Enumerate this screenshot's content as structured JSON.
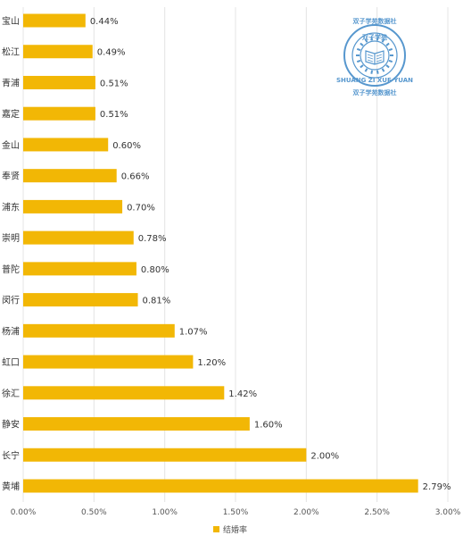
{
  "chart_data": {
    "type": "bar",
    "orientation": "horizontal",
    "categories": [
      "黄埔",
      "长宁",
      "静安",
      "徐汇",
      "虹口",
      "杨浦",
      "闵行",
      "普陀",
      "崇明",
      "浦东",
      "奉贤",
      "金山",
      "嘉定",
      "青浦",
      "松江",
      "宝山"
    ],
    "series": [
      {
        "name": "结婚率",
        "values": [
          2.79,
          2.0,
          1.6,
          1.42,
          1.2,
          1.07,
          0.81,
          0.8,
          0.78,
          0.7,
          0.66,
          0.6,
          0.51,
          0.51,
          0.49,
          0.44
        ],
        "labels": [
          "2.79%",
          "2.00%",
          "1.60%",
          "1.42%",
          "1.20%",
          "1.07%",
          "0.81%",
          "0.80%",
          "0.78%",
          "0.70%",
          "0.66%",
          "0.60%",
          "0.51%",
          "0.51%",
          "0.49%",
          "0.44%"
        ]
      }
    ],
    "xlim": [
      0,
      3.0
    ],
    "x_ticks": [
      "0.00%",
      "0.50%",
      "1.00%",
      "1.50%",
      "2.00%",
      "2.50%",
      "3.00%"
    ],
    "grid": true,
    "legend_position": "bottom-center",
    "bar_color": "#f2b705",
    "title": "",
    "xlabel": "",
    "ylabel": ""
  },
  "watermark": {
    "top_text": "双子学苑数据社",
    "ring_text": "SHUANG ZI XUE YUAN",
    "center_text": "双子学苑",
    "bottom_text": "双子学苑数据社",
    "color": "#3a86c6"
  }
}
